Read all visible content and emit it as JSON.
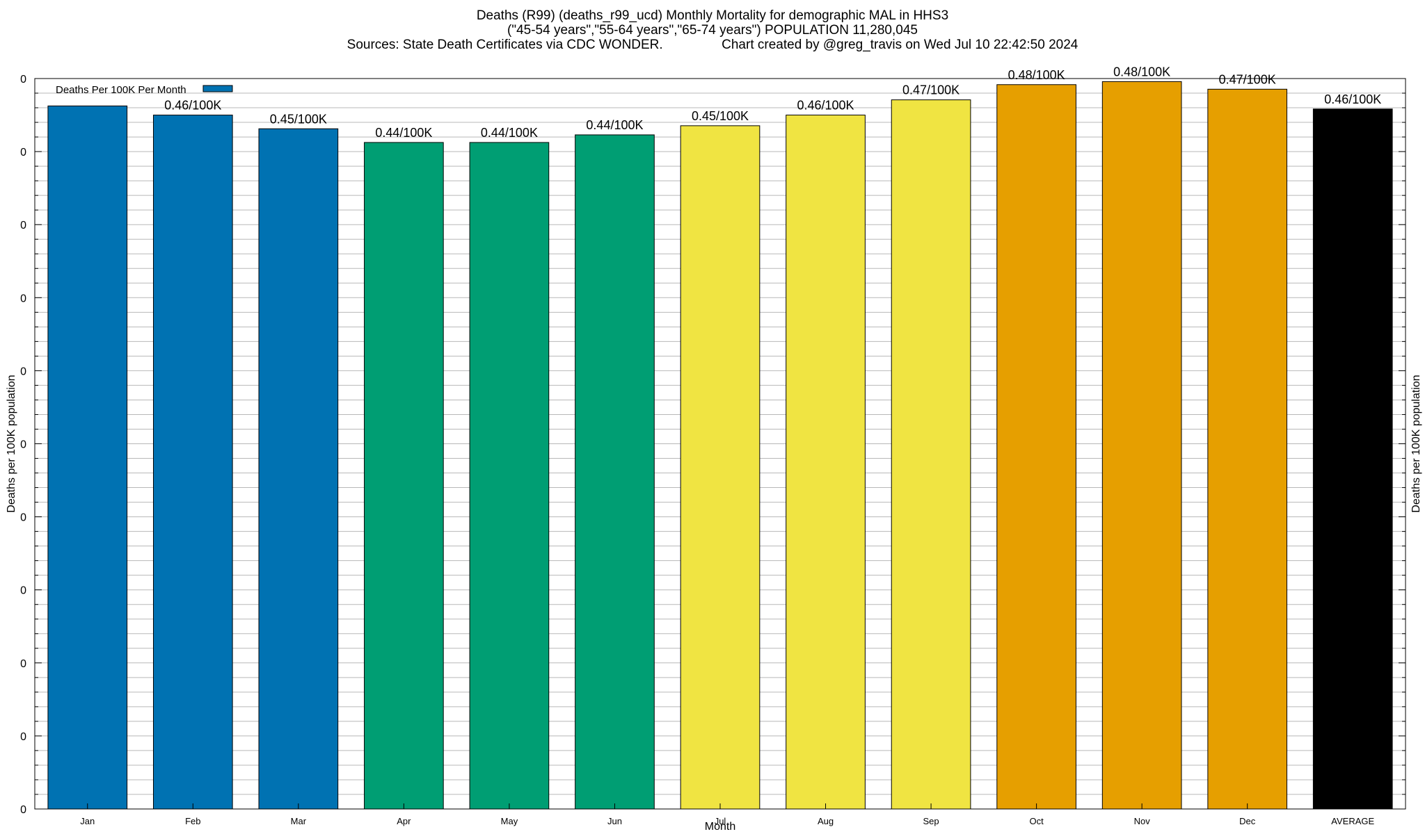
{
  "chart_data": {
    "type": "bar",
    "title_lines": [
      "Deaths (R99) (deaths_r99_ucd) Monthly Mortality for demographic MAL in HHS3",
      "(\"45-54 years\",\"55-64 years\",\"65-74 years\") POPULATION 11,280,045",
      "Sources: State Death Certificates via CDC WONDER.                Chart created by @greg_travis on Wed Jul 10 22:42:50 2024"
    ],
    "xlabel": "Month",
    "ylabel_left": "Deaths per 100K population",
    "ylabel_right": "Deaths per 100K population",
    "legend_label": "Deaths Per 100K Per Month",
    "legend_color": "#0072b2",
    "categories": [
      "Jan",
      "Feb",
      "Mar",
      "Apr",
      "May",
      "Jun",
      "Jul",
      "Aug",
      "Sep",
      "Oct",
      "Nov",
      "Dec",
      "AVERAGE"
    ],
    "values": [
      0.462,
      0.456,
      0.447,
      0.438,
      0.438,
      0.443,
      0.449,
      0.456,
      0.466,
      0.476,
      0.478,
      0.473,
      0.46
    ],
    "data_labels": [
      "",
      "0.46/100K",
      "0.45/100K",
      "0.44/100K",
      "0.44/100K",
      "0.44/100K",
      "0.45/100K",
      "0.46/100K",
      "0.47/100K",
      "0.48/100K",
      "0.48/100K",
      "0.47/100K",
      "0.46/100K"
    ],
    "colors": [
      "#0072b2",
      "#0072b2",
      "#0072b2",
      "#009e73",
      "#009e73",
      "#009e73",
      "#f0e442",
      "#f0e442",
      "#f0e442",
      "#e69f00",
      "#e69f00",
      "#e69f00",
      "#000000"
    ],
    "yticks": [
      "0",
      "0",
      "0",
      "0",
      "0",
      "0",
      "0",
      "0",
      "0",
      "0",
      "0"
    ],
    "ylim": [
      0,
      0.48
    ],
    "grid": true,
    "legend_position": "top-left"
  }
}
